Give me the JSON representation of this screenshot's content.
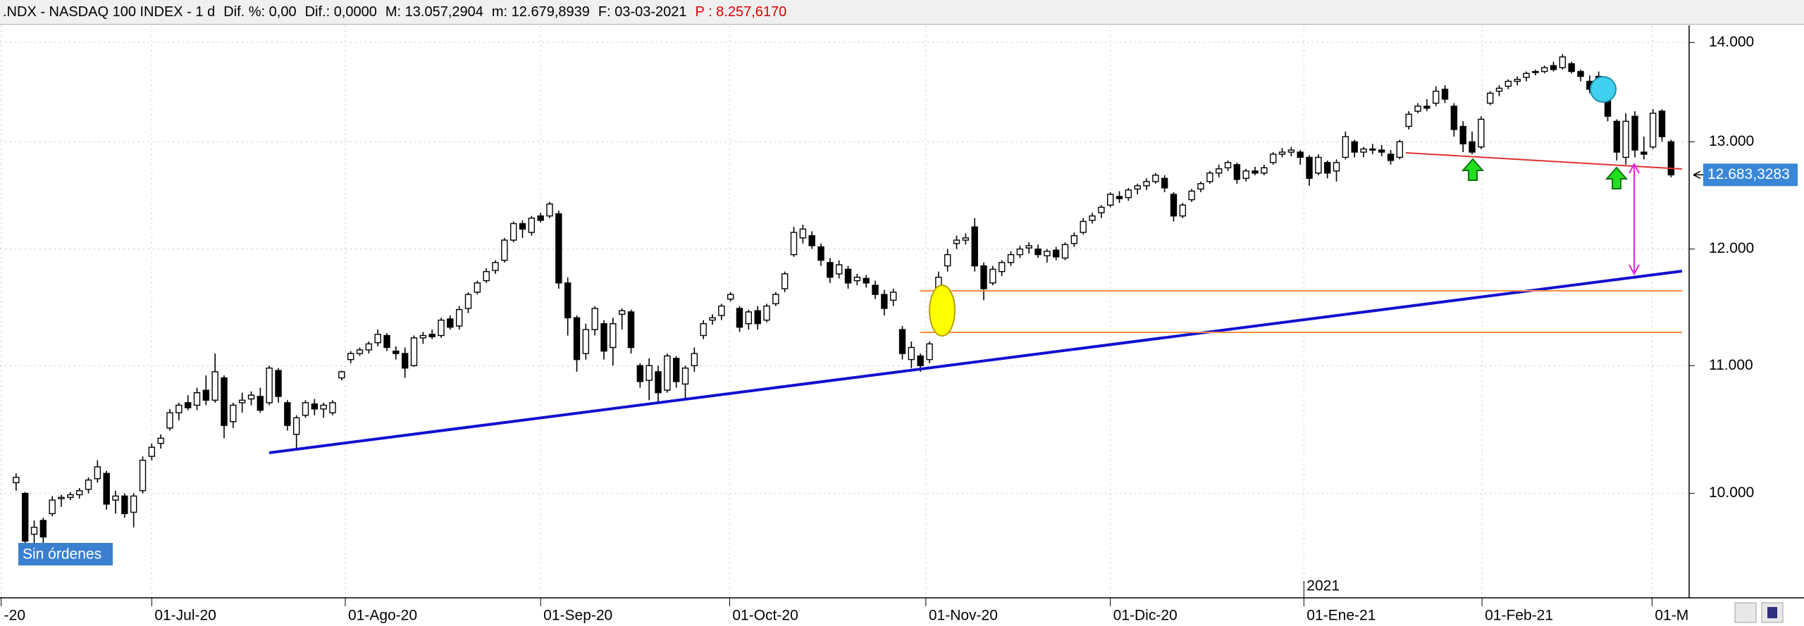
{
  "chart_data": {
    "type": "candlestick",
    "header": [
      ".NDX - NASDAQ 100 INDEX -  1 d",
      "Dif. %: 0,00",
      "Dif.: 0,0000",
      "M: 13.057,2904",
      "m: 12.679,8939",
      "F: 03-03-2021",
      "P : 8.257,6170"
    ],
    "status": "Sin órdenes",
    "yscale": "log",
    "grid": true,
    "up_color": "#ffffff",
    "down_color": "#000000",
    "ylim": [
      9250,
      14180
    ],
    "yticks": [
      {
        "value": 10000,
        "label": "10.000"
      },
      {
        "value": 11000,
        "label": "11.000"
      },
      {
        "value": 12000,
        "label": "12.000"
      },
      {
        "value": 13000,
        "label": "13.000"
      },
      {
        "value": 14000,
        "label": "14.000"
      }
    ],
    "xlim": [
      -1.78,
      185
    ],
    "xticks": [
      {
        "value": -1.65,
        "label": "-20"
      },
      {
        "value": 15,
        "label": "01-Jul-20"
      },
      {
        "value": 36.4,
        "label": "01-Ago-20"
      },
      {
        "value": 58,
        "label": "01-Sep-20"
      },
      {
        "value": 78.9,
        "label": "01-Oct-20"
      },
      {
        "value": 100.6,
        "label": "01-Nov-20"
      },
      {
        "value": 121,
        "label": "01-Dic-20"
      },
      {
        "value": 142.4,
        "label": "01-Ene-21"
      },
      {
        "value": 162.1,
        "label": "01-Feb-21"
      },
      {
        "value": 180.9,
        "label": "01-M"
      }
    ],
    "year_ticks": [
      {
        "value": 142.4,
        "label": "2021"
      }
    ],
    "last_price": {
      "value": 12683.3283,
      "label": "12.683,3283"
    },
    "ohlc": [
      [
        10080,
        10150,
        10020,
        10120
      ],
      [
        10000,
        10010,
        9600,
        9650
      ],
      [
        9700,
        9800,
        9620,
        9750
      ],
      [
        9800,
        9820,
        9620,
        9680
      ],
      [
        9850,
        9980,
        9830,
        9950
      ],
      [
        9960,
        9990,
        9900,
        9970
      ],
      [
        9970,
        10010,
        9950,
        9990
      ],
      [
        9990,
        10040,
        9960,
        10020
      ],
      [
        10030,
        10120,
        10000,
        10100
      ],
      [
        10110,
        10250,
        10080,
        10200
      ],
      [
        10150,
        10170,
        9880,
        9920
      ],
      [
        9950,
        10020,
        9850,
        9980
      ],
      [
        9980,
        10000,
        9820,
        9850
      ],
      [
        9860,
        10000,
        9750,
        9980
      ],
      [
        10020,
        10280,
        10000,
        10250
      ],
      [
        10280,
        10380,
        10250,
        10350
      ],
      [
        10380,
        10450,
        10340,
        10420
      ],
      [
        10500,
        10650,
        10480,
        10620
      ],
      [
        10620,
        10700,
        10560,
        10680
      ],
      [
        10700,
        10760,
        10640,
        10660
      ],
      [
        10680,
        10820,
        10640,
        10780
      ],
      [
        10800,
        10920,
        10680,
        10720
      ],
      [
        10720,
        11100,
        10700,
        10950
      ],
      [
        10900,
        10920,
        10420,
        10520
      ],
      [
        10550,
        10700,
        10500,
        10680
      ],
      [
        10700,
        10780,
        10620,
        10720
      ],
      [
        10730,
        10790,
        10680,
        10760
      ],
      [
        10750,
        10820,
        10620,
        10640
      ],
      [
        10700,
        11000,
        10680,
        10980
      ],
      [
        10960,
        10980,
        10700,
        10750
      ],
      [
        10700,
        10720,
        10480,
        10520
      ],
      [
        10450,
        10600,
        10330,
        10580
      ],
      [
        10600,
        10720,
        10580,
        10700
      ],
      [
        10690,
        10730,
        10600,
        10650
      ],
      [
        10650,
        10700,
        10580,
        10680
      ],
      [
        10620,
        10720,
        10600,
        10700
      ],
      [
        10900,
        10960,
        10880,
        10950
      ],
      [
        11050,
        11120,
        11020,
        11100
      ],
      [
        11100,
        11150,
        11080,
        11130
      ],
      [
        11130,
        11200,
        11100,
        11180
      ],
      [
        11190,
        11300,
        11160,
        11260
      ],
      [
        11250,
        11270,
        11120,
        11150
      ],
      [
        11120,
        11160,
        11050,
        11100
      ],
      [
        11100,
        11150,
        10900,
        10980
      ],
      [
        11000,
        11250,
        10990,
        11230
      ],
      [
        11230,
        11280,
        11180,
        11250
      ],
      [
        11260,
        11300,
        11220,
        11240
      ],
      [
        11250,
        11400,
        11230,
        11380
      ],
      [
        11390,
        11420,
        11300,
        11320
      ],
      [
        11330,
        11500,
        11300,
        11470
      ],
      [
        11480,
        11620,
        11440,
        11600
      ],
      [
        11620,
        11720,
        11600,
        11700
      ],
      [
        11720,
        11830,
        11700,
        11800
      ],
      [
        11810,
        11900,
        11780,
        11880
      ],
      [
        11900,
        12100,
        11880,
        12080
      ],
      [
        12080,
        12250,
        12060,
        12230
      ],
      [
        12230,
        12260,
        12100,
        12180
      ],
      [
        12150,
        12300,
        12120,
        12280
      ],
      [
        12300,
        12330,
        12240,
        12260
      ],
      [
        12300,
        12430,
        12280,
        12410
      ],
      [
        12320,
        12350,
        11650,
        11700
      ],
      [
        11700,
        11750,
        11250,
        11400
      ],
      [
        11400,
        11420,
        10950,
        11050
      ],
      [
        11100,
        11350,
        11050,
        11300
      ],
      [
        11300,
        11500,
        11250,
        11480
      ],
      [
        11350,
        11380,
        11050,
        11120
      ],
      [
        11150,
        11400,
        11000,
        11350
      ],
      [
        11430,
        11480,
        11300,
        11460
      ],
      [
        11450,
        11470,
        11100,
        11150
      ],
      [
        11000,
        11020,
        10820,
        10870
      ],
      [
        10880,
        11060,
        10720,
        11000
      ],
      [
        10950,
        11000,
        10700,
        10780
      ],
      [
        10800,
        11100,
        10780,
        11080
      ],
      [
        11060,
        11080,
        10820,
        10870
      ],
      [
        10850,
        11000,
        10720,
        10980
      ],
      [
        11000,
        11150,
        10950,
        11100
      ],
      [
        11250,
        11380,
        11220,
        11350
      ],
      [
        11380,
        11430,
        11340,
        11400
      ],
      [
        11420,
        11520,
        11380,
        11500
      ],
      [
        11560,
        11620,
        11540,
        11600
      ],
      [
        11480,
        11500,
        11280,
        11320
      ],
      [
        11350,
        11470,
        11300,
        11450
      ],
      [
        11460,
        11500,
        11300,
        11350
      ],
      [
        11380,
        11520,
        11360,
        11500
      ],
      [
        11520,
        11620,
        11500,
        11600
      ],
      [
        11650,
        11800,
        11620,
        11780
      ],
      [
        11950,
        12200,
        11930,
        12150
      ],
      [
        12100,
        12220,
        12050,
        12180
      ],
      [
        12120,
        12160,
        12000,
        12030
      ],
      [
        12020,
        12050,
        11850,
        11900
      ],
      [
        11880,
        11920,
        11700,
        11750
      ],
      [
        11780,
        11900,
        11740,
        11860
      ],
      [
        11820,
        11850,
        11650,
        11700
      ],
      [
        11720,
        11780,
        11680,
        11750
      ],
      [
        11740,
        11770,
        11660,
        11700
      ],
      [
        11680,
        11720,
        11560,
        11600
      ],
      [
        11600,
        11640,
        11420,
        11480
      ],
      [
        11550,
        11650,
        11500,
        11620
      ],
      [
        11300,
        11330,
        11050,
        11100
      ],
      [
        11050,
        11200,
        10980,
        11150
      ],
      [
        11080,
        11100,
        10950,
        11000
      ],
      [
        11050,
        11200,
        11020,
        11180
      ],
      [
        11300,
        11800,
        11280,
        11750
      ],
      [
        11850,
        12000,
        11800,
        11950
      ],
      [
        12050,
        12120,
        12000,
        12080
      ],
      [
        12080,
        12140,
        12040,
        12100
      ],
      [
        12200,
        12280,
        11800,
        11850
      ],
      [
        11850,
        11880,
        11550,
        11650
      ],
      [
        11700,
        11850,
        11680,
        11820
      ],
      [
        11800,
        11900,
        11760,
        11880
      ],
      [
        11880,
        11980,
        11850,
        11950
      ],
      [
        11950,
        12030,
        11920,
        12000
      ],
      [
        12010,
        12060,
        11960,
        12030
      ],
      [
        12000,
        12040,
        11920,
        11950
      ],
      [
        11940,
        12000,
        11880,
        11980
      ],
      [
        11990,
        12020,
        11900,
        11930
      ],
      [
        11920,
        12060,
        11900,
        12040
      ],
      [
        12050,
        12150,
        12020,
        12120
      ],
      [
        12150,
        12280,
        12130,
        12250
      ],
      [
        12260,
        12330,
        12230,
        12300
      ],
      [
        12330,
        12400,
        12280,
        12380
      ],
      [
        12400,
        12520,
        12380,
        12500
      ],
      [
        12480,
        12530,
        12420,
        12460
      ],
      [
        12470,
        12560,
        12440,
        12540
      ],
      [
        12550,
        12600,
        12500,
        12580
      ],
      [
        12580,
        12650,
        12540,
        12620
      ],
      [
        12620,
        12700,
        12600,
        12680
      ],
      [
        12650,
        12680,
        12520,
        12560
      ],
      [
        12500,
        12520,
        12250,
        12300
      ],
      [
        12300,
        12420,
        12280,
        12400
      ],
      [
        12450,
        12550,
        12430,
        12530
      ],
      [
        12550,
        12620,
        12520,
        12600
      ],
      [
        12620,
        12720,
        12600,
        12700
      ],
      [
        12700,
        12780,
        12660,
        12740
      ],
      [
        12750,
        12820,
        12720,
        12800
      ],
      [
        12780,
        12800,
        12600,
        12640
      ],
      [
        12650,
        12740,
        12620,
        12720
      ],
      [
        12720,
        12760,
        12680,
        12700
      ],
      [
        12700,
        12780,
        12680,
        12750
      ],
      [
        12800,
        12900,
        12780,
        12880
      ],
      [
        12880,
        12940,
        12850,
        12900
      ],
      [
        12900,
        12950,
        12860,
        12920
      ],
      [
        12900,
        12920,
        12780,
        12850
      ],
      [
        12850,
        12870,
        12580,
        12650
      ],
      [
        12700,
        12880,
        12680,
        12850
      ],
      [
        12800,
        12820,
        12650,
        12700
      ],
      [
        12720,
        12830,
        12620,
        12800
      ],
      [
        12850,
        13100,
        12830,
        13050
      ],
      [
        13000,
        13020,
        12850,
        12900
      ],
      [
        12900,
        12950,
        12850,
        12930
      ],
      [
        12930,
        12980,
        12880,
        12920
      ],
      [
        12920,
        12970,
        12860,
        12900
      ],
      [
        12880,
        12920,
        12780,
        12820
      ],
      [
        12850,
        13020,
        12830,
        13000
      ],
      [
        13150,
        13300,
        13120,
        13270
      ],
      [
        13300,
        13380,
        13280,
        13350
      ],
      [
        13350,
        13420,
        13300,
        13330
      ],
      [
        13380,
        13550,
        13350,
        13500
      ],
      [
        13520,
        13560,
        13380,
        13420
      ],
      [
        13350,
        13380,
        13050,
        13120
      ],
      [
        13150,
        13200,
        12900,
        12980
      ],
      [
        13000,
        13100,
        12880,
        12900
      ],
      [
        12950,
        13250,
        12930,
        13220
      ],
      [
        13380,
        13500,
        13360,
        13480
      ],
      [
        13500,
        13560,
        13450,
        13530
      ],
      [
        13550,
        13620,
        13520,
        13600
      ],
      [
        13600,
        13650,
        13560,
        13620
      ],
      [
        13640,
        13700,
        13600,
        13680
      ],
      [
        13700,
        13720,
        13660,
        13690
      ],
      [
        13700,
        13760,
        13680,
        13740
      ],
      [
        13760,
        13800,
        13700,
        13720
      ],
      [
        13740,
        13880,
        13720,
        13850
      ],
      [
        13780,
        13800,
        13680,
        13700
      ],
      [
        13700,
        13720,
        13600,
        13650
      ],
      [
        13600,
        13660,
        13480,
        13520
      ],
      [
        13650,
        13700,
        13550,
        13600
      ],
      [
        13500,
        13520,
        13200,
        13250
      ],
      [
        13200,
        13220,
        12820,
        12900
      ],
      [
        12850,
        13280,
        12780,
        13200
      ],
      [
        13250,
        13300,
        12850,
        12920
      ],
      [
        12900,
        13050,
        12830,
        12880
      ],
      [
        12950,
        13320,
        12930,
        13280
      ],
      [
        13300,
        13320,
        13000,
        13050
      ],
      [
        13000,
        13020,
        12660,
        12683
      ]
    ]
  }
}
